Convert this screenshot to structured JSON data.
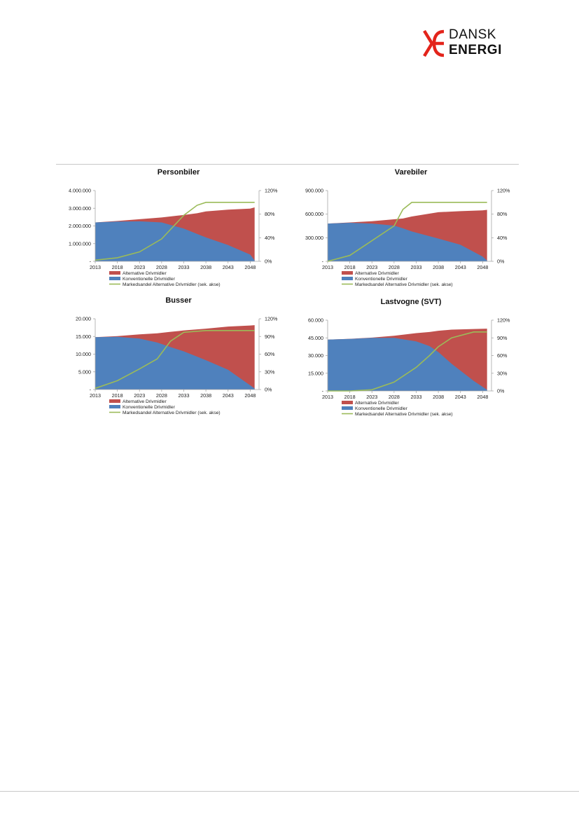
{
  "brand": {
    "line1": "DANSK",
    "line2": "ENERGI",
    "colors": {
      "mark": "#e3241b",
      "text": "#111111"
    }
  },
  "colors": {
    "alternative": "#c0504d",
    "konventionelle": "#4f81bd",
    "markedsandel": "#9bbb59",
    "axis": "#a6a6a6"
  },
  "chart_data": [
    {
      "type": "area",
      "title": "Personbiler",
      "ylim": [
        0,
        4000000
      ],
      "y2lim": [
        0,
        1.2
      ],
      "yticks": [
        "-",
        "1.000.000",
        "2.000.000",
        "3.000.000",
        "4.000.000"
      ],
      "y2ticks": [
        "0%",
        "40%",
        "80%",
        "120%"
      ],
      "xticks": [
        "2013",
        "2018",
        "2023",
        "2028",
        "2033",
        "2038",
        "2043",
        "2048"
      ],
      "x": [
        2013,
        2018,
        2023,
        2028,
        2033,
        2036,
        2038,
        2043,
        2048,
        2049
      ],
      "series": [
        {
          "name": "Alternative Drivmidler",
          "kind": "area",
          "total": [
            2200000,
            2280000,
            2380000,
            2480000,
            2620000,
            2720000,
            2820000,
            2920000,
            2980000,
            3050000
          ]
        },
        {
          "name": "Konventionelle Drivmidler",
          "kind": "area",
          "values": [
            2200000,
            2250000,
            2260000,
            2200000,
            1850000,
            1550000,
            1350000,
            920000,
            380000,
            50000
          ]
        },
        {
          "name": "Markedsandel Alternative Drivmidler (sek. akse)",
          "kind": "line",
          "axis": "secondary",
          "values": [
            0.02,
            0.06,
            0.16,
            0.38,
            0.78,
            0.95,
            1.0,
            1.0,
            1.0,
            1.0
          ]
        }
      ]
    },
    {
      "type": "area",
      "title": "Varebiler",
      "ylim": [
        0,
        900000
      ],
      "y2lim": [
        0,
        1.2
      ],
      "yticks": [
        "-",
        "300.000",
        "600.000",
        "900.000"
      ],
      "y2ticks": [
        "0%",
        "40%",
        "80%",
        "120%"
      ],
      "xticks": [
        "2013",
        "2018",
        "2023",
        "2028",
        "2033",
        "2038",
        "2043",
        "2048"
      ],
      "x": [
        2013,
        2018,
        2023,
        2028,
        2030,
        2032,
        2038,
        2043,
        2048,
        2049
      ],
      "series": [
        {
          "name": "Alternative Drivmidler",
          "kind": "area",
          "total": [
            480000,
            495000,
            510000,
            535000,
            545000,
            570000,
            625000,
            638000,
            648000,
            655000
          ]
        },
        {
          "name": "Konventionelle Drivmidler",
          "kind": "area",
          "values": [
            480000,
            490000,
            480000,
            455000,
            420000,
            380000,
            290000,
            210000,
            60000,
            10000
          ]
        },
        {
          "name": "Markedsandel Alternative Drivmidler (sek. akse)",
          "kind": "line",
          "axis": "secondary",
          "values": [
            0.0,
            0.1,
            0.35,
            0.6,
            0.88,
            1.0,
            1.0,
            1.0,
            1.0,
            1.0
          ]
        }
      ]
    },
    {
      "type": "area",
      "title": "Busser",
      "ylim": [
        0,
        20000
      ],
      "y2lim": [
        0,
        1.2
      ],
      "yticks": [
        "-",
        "5.000",
        "10.000",
        "15.000",
        "20.000"
      ],
      "y2ticks": [
        "0%",
        "30%",
        "60%",
        "90%",
        "120%"
      ],
      "xticks": [
        "2013",
        "2018",
        "2023",
        "2028",
        "2033",
        "2038",
        "2043",
        "2048"
      ],
      "x": [
        2013,
        2018,
        2023,
        2027,
        2030,
        2033,
        2038,
        2043,
        2048,
        2049
      ],
      "series": [
        {
          "name": "Alternative Drivmidler",
          "kind": "area",
          "total": [
            14800,
            15100,
            15600,
            15900,
            16300,
            16700,
            17200,
            17800,
            18100,
            18200
          ]
        },
        {
          "name": "Konventionelle Drivmidler",
          "kind": "area",
          "values": [
            14800,
            14900,
            14400,
            13300,
            12000,
            10800,
            8300,
            5600,
            1200,
            300
          ]
        },
        {
          "name": "Markedsandel Alternative Drivmidler (sek. akse)",
          "kind": "line",
          "axis": "secondary",
          "values": [
            0.02,
            0.15,
            0.35,
            0.52,
            0.82,
            0.97,
            1.0,
            1.0,
            1.0,
            1.0
          ]
        }
      ]
    },
    {
      "type": "area",
      "title": "Lastvogne (SVT)",
      "ylim": [
        0,
        60000
      ],
      "y2lim": [
        0,
        1.2
      ],
      "yticks": [
        "-",
        "15.000",
        "30.000",
        "45.000",
        "60.000"
      ],
      "y2ticks": [
        "0%",
        "30%",
        "60%",
        "90%",
        "120%"
      ],
      "xticks": [
        "2013",
        "2018",
        "2023",
        "2028",
        "2033",
        "2038",
        "2043",
        "2048"
      ],
      "x": [
        2013,
        2018,
        2023,
        2028,
        2033,
        2036,
        2038,
        2041,
        2046,
        2049
      ],
      "series": [
        {
          "name": "Alternative Drivmidler",
          "kind": "area",
          "total": [
            43500,
            44200,
            45200,
            46800,
            49000,
            50000,
            51000,
            52000,
            52500,
            52800
          ]
        },
        {
          "name": "Konventionelle Drivmidler",
          "kind": "area",
          "values": [
            43500,
            44100,
            45000,
            45000,
            42000,
            38000,
            33000,
            23000,
            8500,
            1000
          ]
        },
        {
          "name": "Markedsandel Alternative Drivmidler (sek. akse)",
          "kind": "line",
          "axis": "secondary",
          "values": [
            0.0,
            0.0,
            0.02,
            0.15,
            0.4,
            0.6,
            0.75,
            0.9,
            1.0,
            1.0
          ]
        }
      ]
    }
  ]
}
